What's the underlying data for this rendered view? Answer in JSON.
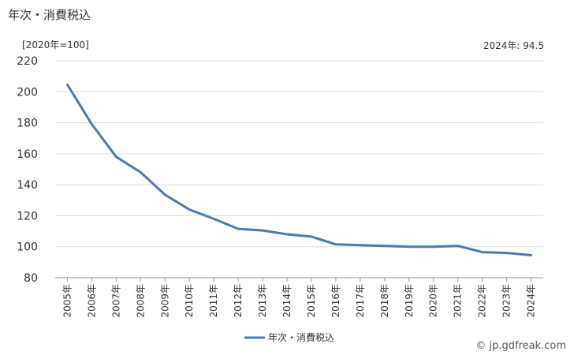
{
  "header": {
    "title": "年次・消費税込",
    "unit_note": "[2020年=100]",
    "latest_label": "2024年: 94.5"
  },
  "footer": {
    "copyright": "© jp.gdfreak.com"
  },
  "chart_data": {
    "type": "line",
    "title": "年次・消費税込",
    "ylabel": "[2020年=100]",
    "ylim": [
      80,
      220
    ],
    "yticks": [
      80,
      100,
      120,
      140,
      160,
      180,
      200,
      220
    ],
    "categories": [
      "2005年",
      "2006年",
      "2007年",
      "2008年",
      "2009年",
      "2010年",
      "2011年",
      "2012年",
      "2013年",
      "2014年",
      "2015年",
      "2016年",
      "2017年",
      "2018年",
      "2019年",
      "2020年",
      "2021年",
      "2022年",
      "2023年",
      "2024年"
    ],
    "series": [
      {
        "name": "年次・消費税込",
        "color": "#4a7ab5",
        "values": [
          204.5,
          179.0,
          158.0,
          148.0,
          133.5,
          124.0,
          118.0,
          111.5,
          110.5,
          108.0,
          106.5,
          101.5,
          101.0,
          100.5,
          100.0,
          100.0,
          100.5,
          96.5,
          96.0,
          94.5
        ]
      }
    ],
    "grid": true,
    "legend_position": "bottom-center"
  }
}
